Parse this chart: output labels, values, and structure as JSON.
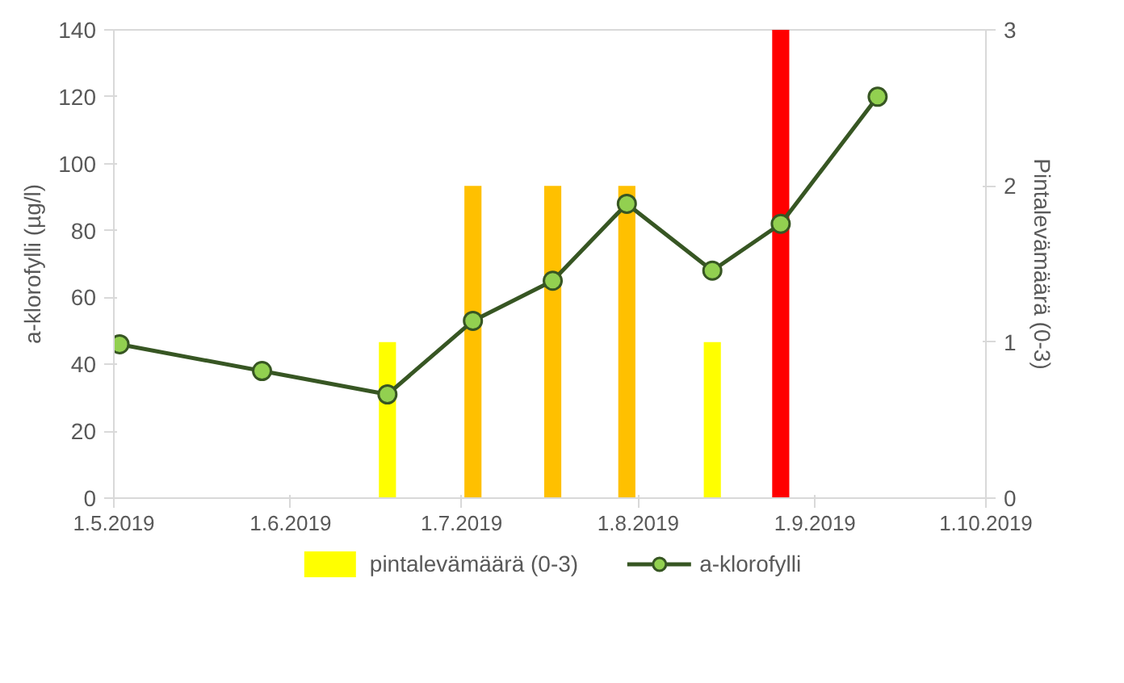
{
  "chart_data": {
    "type": "line",
    "ylabel": "a-klorofylli (µg/l)",
    "y2label": "Pintalevämäärä (0-3)",
    "xlim": [
      "2019-05-01",
      "2019-10-01"
    ],
    "xticks": [
      {
        "value": "2019-05-01",
        "label": "1.5.2019"
      },
      {
        "value": "2019-06-01",
        "label": "1.6.2019"
      },
      {
        "value": "2019-07-01",
        "label": "1.7.2019"
      },
      {
        "value": "2019-08-01",
        "label": "1.8.2019"
      },
      {
        "value": "2019-09-01",
        "label": "1.9.2019"
      },
      {
        "value": "2019-10-01",
        "label": "1.10.2019"
      }
    ],
    "ylim": [
      0,
      140
    ],
    "yticks": [
      0,
      20,
      40,
      60,
      80,
      100,
      120,
      140
    ],
    "y2lim": [
      0,
      3
    ],
    "y2ticks": [
      0,
      1,
      2,
      3
    ],
    "grid": false,
    "legend": "bottom",
    "series": [
      {
        "name": "pintalevämäärä (0-3)",
        "type": "bar",
        "axis": "y2",
        "x": [
          "2019-06-18",
          "2019-07-03",
          "2019-07-17",
          "2019-07-30",
          "2019-08-14",
          "2019-08-26"
        ],
        "values": [
          1,
          2,
          2,
          2,
          1,
          3
        ],
        "colors": [
          "#ffff00",
          "#ffc000",
          "#ffc000",
          "#ffc000",
          "#ffff00",
          "#ff0000"
        ]
      },
      {
        "name": "a-klorofylli",
        "color": "#375623",
        "marker": "circle",
        "line_style": "solid",
        "x": [
          "2019-05-02",
          "2019-05-27",
          "2019-06-18",
          "2019-07-03",
          "2019-07-17",
          "2019-07-30",
          "2019-08-14",
          "2019-08-26",
          "2019-09-12"
        ],
        "values": [
          46,
          38,
          31,
          53,
          65,
          88,
          68,
          82,
          120
        ]
      }
    ]
  }
}
